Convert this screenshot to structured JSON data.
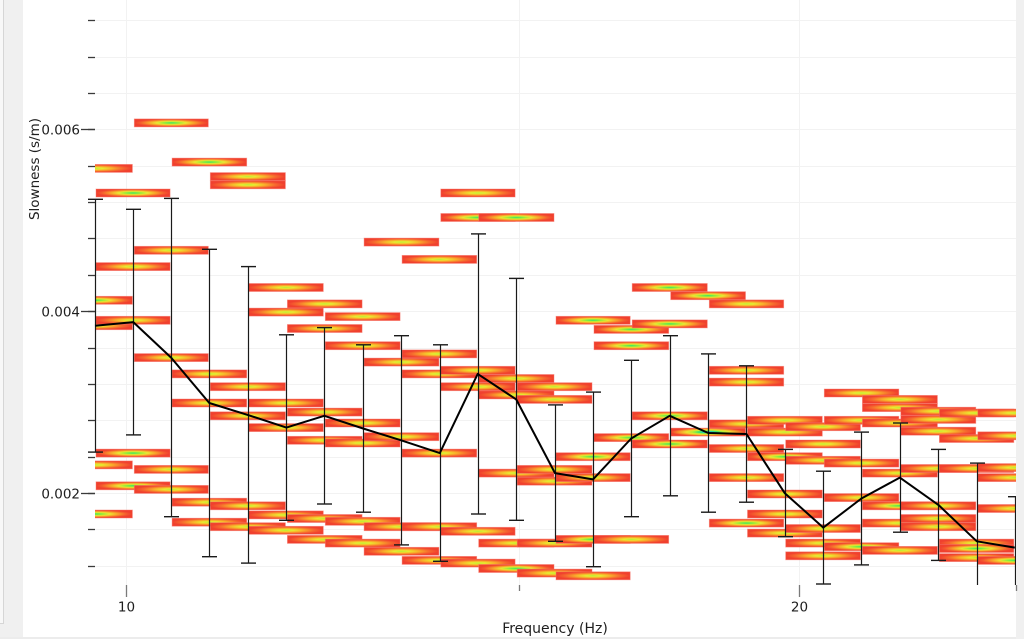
{
  "chart_data": {
    "type": "heatmap",
    "title": "",
    "xlabel": "Frequency (Hz)",
    "ylabel": "Slowness (s/m)",
    "x_log": true,
    "xlim": [
      9.69,
      25.0
    ],
    "ylim": [
      0.001,
      0.0074
    ],
    "x_ticks": [
      {
        "value": 10,
        "label": "10",
        "major": true
      },
      {
        "value": 15,
        "label": "",
        "major": false
      },
      {
        "value": 20,
        "label": "20",
        "major": true
      },
      {
        "value": 25,
        "label": "",
        "major": false
      }
    ],
    "y_ticks": [
      {
        "value": 0.002,
        "label": "0.002"
      },
      {
        "value": 0.004,
        "label": "0.004"
      },
      {
        "value": 0.006,
        "label": "0.006"
      }
    ],
    "y_minor_step": 0.0004,
    "grid": true,
    "frequencies": [
      9.69,
      10.08,
      10.48,
      10.9,
      11.34,
      11.8,
      12.27,
      12.77,
      13.28,
      13.82,
      14.37,
      14.95,
      15.56,
      16.18,
      16.83,
      17.51,
      18.22,
      18.95,
      19.71,
      20.51,
      21.33,
      22.19,
      23.09,
      24.02,
      24.98
    ],
    "mean_curve": {
      "color": "#000000",
      "errorbar_color": "#1a1a1a",
      "values": [
        0.00384,
        0.00388,
        0.00349,
        0.00299,
        0.00286,
        0.00272,
        0.00285,
        0.00271,
        0.00258,
        0.00244,
        0.00331,
        0.00303,
        0.00222,
        0.00215,
        0.0026,
        0.00285,
        0.00266,
        0.00265,
        0.002,
        0.00162,
        0.00194,
        0.00217,
        0.00187,
        0.00147,
        0.0014
      ],
      "std": [
        0.00139,
        0.00124,
        0.00175,
        0.00169,
        0.00163,
        0.00102,
        0.00097,
        0.00092,
        0.00115,
        0.00119,
        0.00154,
        0.00133,
        0.00075,
        0.00096,
        0.00086,
        0.00088,
        0.00087,
        0.00075,
        0.00048,
        0.00062,
        0.00073,
        0.0006,
        0.00061,
        0.00086,
        0.00056
      ]
    },
    "histogram": [
      {
        "slowness": [
          0.00557,
          0.00412,
          0.00384,
          0.00231,
          0.00177
        ],
        "density": [
          2,
          3,
          2,
          2,
          3
        ]
      },
      {
        "slowness": [
          0.0053,
          0.00449,
          0.0039,
          0.00244,
          0.00208
        ],
        "density": [
          3,
          2,
          2,
          3,
          3
        ]
      },
      {
        "slowness": [
          0.00607,
          0.00467,
          0.00349,
          0.00226,
          0.00204
        ],
        "density": [
          3,
          2,
          2,
          2,
          2
        ]
      },
      {
        "slowness": [
          0.00564,
          0.00331,
          0.00299,
          0.0019,
          0.00168
        ],
        "density": [
          3,
          2,
          2,
          2,
          2
        ]
      },
      {
        "slowness": [
          0.00548,
          0.00539,
          0.00317,
          0.00285,
          0.00186,
          0.00163
        ],
        "density": [
          2,
          2,
          2,
          2,
          2,
          2
        ]
      },
      {
        "slowness": [
          0.00426,
          0.00399,
          0.00299,
          0.00272,
          0.00176,
          0.00159
        ],
        "density": [
          2,
          2,
          2,
          2,
          2,
          2
        ]
      },
      {
        "slowness": [
          0.00408,
          0.00381,
          0.00289,
          0.00258,
          0.00172,
          0.00149
        ],
        "density": [
          2,
          2,
          2,
          2,
          2,
          2
        ]
      },
      {
        "slowness": [
          0.00394,
          0.00362,
          0.00277,
          0.00255,
          0.00169,
          0.00145
        ],
        "density": [
          2,
          2,
          2,
          2,
          2,
          2
        ]
      },
      {
        "slowness": [
          0.00476,
          0.00344,
          0.00262,
          0.00163,
          0.00136
        ],
        "density": [
          2,
          2,
          2,
          2,
          2
        ]
      },
      {
        "slowness": [
          0.00457,
          0.00353,
          0.00331,
          0.00244,
          0.00163,
          0.00126
        ],
        "density": [
          2,
          2,
          2,
          2,
          2,
          2
        ]
      },
      {
        "slowness": [
          0.0053,
          0.00503,
          0.00335,
          0.00317,
          0.00158,
          0.00123
        ],
        "density": [
          2,
          3,
          2,
          2,
          2,
          2
        ]
      },
      {
        "slowness": [
          0.00503,
          0.00326,
          0.00308,
          0.00222,
          0.00145,
          0.00117
        ],
        "density": [
          3,
          2,
          2,
          2,
          2,
          3
        ]
      },
      {
        "slowness": [
          0.00317,
          0.00303,
          0.00226,
          0.00213,
          0.00145,
          0.00112
        ],
        "density": [
          2,
          2,
          2,
          2,
          2,
          2
        ]
      },
      {
        "slowness": [
          0.0039,
          0.0024,
          0.00217,
          0.00149,
          0.00109
        ],
        "density": [
          3,
          3,
          2,
          3,
          2
        ]
      },
      {
        "slowness": [
          0.0038,
          0.00362,
          0.00261,
          0.00149
        ],
        "density": [
          3,
          3,
          3,
          2
        ]
      },
      {
        "slowness": [
          0.00426,
          0.00386,
          0.00285,
          0.00254
        ],
        "density": [
          3,
          3,
          3,
          3
        ]
      },
      {
        "slowness": [
          0.00417,
          0.00267
        ],
        "density": [
          3,
          4
        ]
      },
      {
        "slowness": [
          0.00408,
          0.00335,
          0.00322,
          0.00276,
          0.00249,
          0.00217,
          0.00167
        ],
        "density": [
          2,
          2,
          2,
          2,
          2,
          2,
          3
        ]
      },
      {
        "slowness": [
          0.0028,
          0.00267,
          0.0024,
          0.00199,
          0.00177,
          0.00156
        ],
        "density": [
          2,
          2,
          3,
          2,
          2,
          2
        ]
      },
      {
        "slowness": [
          0.00273,
          0.00254,
          0.00236,
          0.00161,
          0.00145,
          0.00131
        ],
        "density": [
          2,
          2,
          2,
          2,
          2,
          2
        ]
      },
      {
        "slowness": [
          0.0031,
          0.0028,
          0.00233,
          0.00195,
          0.00141
        ],
        "density": [
          2,
          2,
          2,
          2,
          3
        ]
      },
      {
        "slowness": [
          0.00303,
          0.00294,
          0.00277,
          0.00222,
          0.00186,
          0.00167,
          0.00137
        ],
        "density": [
          2,
          2,
          2,
          2,
          3,
          2,
          2
        ]
      },
      {
        "slowness": [
          0.0029,
          0.00281,
          0.00268,
          0.00227,
          0.00186,
          0.00172,
          0.00163
        ],
        "density": [
          2,
          2,
          2,
          2,
          2,
          2,
          2
        ]
      },
      {
        "slowness": [
          0.00288,
          0.0026,
          0.00227,
          0.00145,
          0.00139,
          0.00129
        ],
        "density": [
          2,
          2,
          2,
          2,
          3,
          2
        ]
      },
      {
        "slowness": [
          0.00288,
          0.00263,
          0.00228,
          0.00217,
          0.00183,
          0.00126
        ],
        "density": [
          2,
          2,
          2,
          2,
          2,
          3
        ]
      }
    ]
  }
}
